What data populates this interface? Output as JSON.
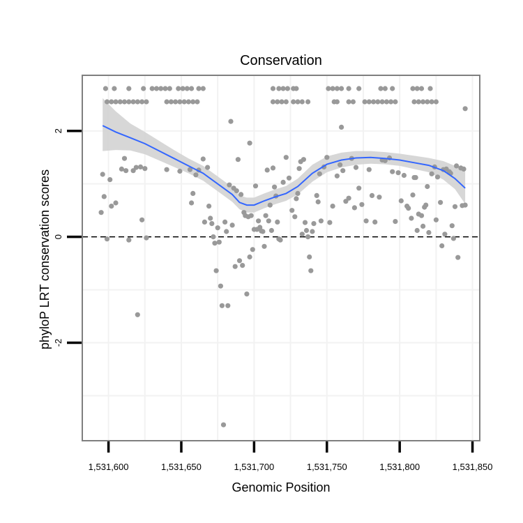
{
  "chart_data": {
    "type": "scatter",
    "title": "Conservation",
    "xlabel": "Genomic Position",
    "ylabel": "phyloP LRT conservation scores",
    "xlim": [
      1531582,
      1531855
    ],
    "ylim": [
      -3.85,
      3.05
    ],
    "grid": true,
    "x_ticks": [
      1531600,
      1531650,
      1531700,
      1531750,
      1531800,
      1531850
    ],
    "x_tick_labels": [
      "1,531,600",
      "1,531,650",
      "1,531,700",
      "1,531,750",
      "1,531,800",
      "1,531,850"
    ],
    "y_ticks": [
      -2,
      0,
      2
    ],
    "y_tick_labels": [
      "-2",
      "0",
      "2"
    ],
    "reference_line": {
      "y": 0,
      "style": "dashed"
    },
    "colors": {
      "points": "#999999",
      "smooth": "#3366FF",
      "ribbon": "#D3D3D3",
      "panel_border": "#7F7F7F",
      "grid": "#F2F2F2"
    },
    "series": [
      {
        "name": "points",
        "points": [
          [
            1531598,
            2.8
          ],
          [
            1531604,
            2.8
          ],
          [
            1531614,
            2.8
          ],
          [
            1531624,
            2.8
          ],
          [
            1531630,
            2.8
          ],
          [
            1531633,
            2.8
          ],
          [
            1531636,
            2.8
          ],
          [
            1531639,
            2.8
          ],
          [
            1531642,
            2.8
          ],
          [
            1531648,
            2.8
          ],
          [
            1531651,
            2.8
          ],
          [
            1531654,
            2.8
          ],
          [
            1531657,
            2.8
          ],
          [
            1531662,
            2.8
          ],
          [
            1531665,
            2.8
          ],
          [
            1531599,
            2.55
          ],
          [
            1531602,
            2.55
          ],
          [
            1531605,
            2.55
          ],
          [
            1531608,
            2.55
          ],
          [
            1531611,
            2.55
          ],
          [
            1531614,
            2.55
          ],
          [
            1531617,
            2.55
          ],
          [
            1531620,
            2.55
          ],
          [
            1531623,
            2.55
          ],
          [
            1531626,
            2.55
          ],
          [
            1531640,
            2.55
          ],
          [
            1531643,
            2.55
          ],
          [
            1531646,
            2.55
          ],
          [
            1531649,
            2.55
          ],
          [
            1531652,
            2.55
          ],
          [
            1531655,
            2.55
          ],
          [
            1531658,
            2.55
          ],
          [
            1531661,
            2.55
          ],
          [
            1531713,
            2.8
          ],
          [
            1531717,
            2.8
          ],
          [
            1531720,
            2.8
          ],
          [
            1531723,
            2.8
          ],
          [
            1531727,
            2.8
          ],
          [
            1531729,
            2.8
          ],
          [
            1531751,
            2.8
          ],
          [
            1531754,
            2.8
          ],
          [
            1531757,
            2.8
          ],
          [
            1531760,
            2.8
          ],
          [
            1531765,
            2.8
          ],
          [
            1531772,
            2.8
          ],
          [
            1531787,
            2.8
          ],
          [
            1531790,
            2.8
          ],
          [
            1531795,
            2.8
          ],
          [
            1531809,
            2.8
          ],
          [
            1531812,
            2.8
          ],
          [
            1531815,
            2.8
          ],
          [
            1531821,
            2.8
          ],
          [
            1531713,
            2.55
          ],
          [
            1531716,
            2.55
          ],
          [
            1531719,
            2.55
          ],
          [
            1531722,
            2.55
          ],
          [
            1531727,
            2.55
          ],
          [
            1531730,
            2.55
          ],
          [
            1531733,
            2.55
          ],
          [
            1531737,
            2.55
          ],
          [
            1531755,
            2.55
          ],
          [
            1531757,
            2.55
          ],
          [
            1531765,
            2.55
          ],
          [
            1531768,
            2.55
          ],
          [
            1531776,
            2.55
          ],
          [
            1531779,
            2.55
          ],
          [
            1531782,
            2.55
          ],
          [
            1531785,
            2.55
          ],
          [
            1531788,
            2.55
          ],
          [
            1531791,
            2.55
          ],
          [
            1531794,
            2.55
          ],
          [
            1531797,
            2.55
          ],
          [
            1531810,
            2.55
          ],
          [
            1531813,
            2.55
          ],
          [
            1531816,
            2.55
          ],
          [
            1531819,
            2.55
          ],
          [
            1531822,
            2.55
          ],
          [
            1531825,
            2.55
          ],
          [
            1531845,
            2.42
          ],
          [
            1531760,
            2.07
          ],
          [
            1531684,
            2.18
          ],
          [
            1531697,
            1.77
          ],
          [
            1531595,
            0.46
          ],
          [
            1531596,
            1.18
          ],
          [
            1531597,
            0.76
          ],
          [
            1531599,
            -0.04
          ],
          [
            1531601,
            1.08
          ],
          [
            1531602,
            0.58
          ],
          [
            1531605,
            0.64
          ],
          [
            1531609,
            1.28
          ],
          [
            1531611,
            1.48
          ],
          [
            1531612,
            1.25
          ],
          [
            1531614,
            -0.06
          ],
          [
            1531617,
            1.25
          ],
          [
            1531619,
            1.31
          ],
          [
            1531620,
            -1.47
          ],
          [
            1531622,
            1.32
          ],
          [
            1531623,
            0.32
          ],
          [
            1531625,
            1.29
          ],
          [
            1531626,
            -0.02
          ],
          [
            1531640,
            1.27
          ],
          [
            1531649,
            1.24
          ],
          [
            1531656,
            1.27
          ],
          [
            1531657,
            0.64
          ],
          [
            1531658,
            0.82
          ],
          [
            1531660,
            1.17
          ],
          [
            1531662,
            1.26
          ],
          [
            1531665,
            1.47
          ],
          [
            1531666,
            0.28
          ],
          [
            1531668,
            1.31
          ],
          [
            1531669,
            0.58
          ],
          [
            1531670,
            0.35
          ],
          [
            1531671,
            0.25
          ],
          [
            1531672,
            0.0
          ],
          [
            1531673,
            -0.12
          ],
          [
            1531674,
            -0.64
          ],
          [
            1531675,
            0.17
          ],
          [
            1531676,
            -0.1
          ],
          [
            1531677,
            -0.93
          ],
          [
            1531678,
            -1.3
          ],
          [
            1531679,
            -3.55
          ],
          [
            1531680,
            0.28
          ],
          [
            1531681,
            0.1
          ],
          [
            1531682,
            -1.3
          ],
          [
            1531683,
            0.98
          ],
          [
            1531685,
            0.22
          ],
          [
            1531686,
            0.92
          ],
          [
            1531687,
            -0.56
          ],
          [
            1531688,
            0.87
          ],
          [
            1531689,
            1.46
          ],
          [
            1531690,
            -0.45
          ],
          [
            1531691,
            0.8
          ],
          [
            1531692,
            -0.54
          ],
          [
            1531693,
            0.46
          ],
          [
            1531694,
            0.4
          ],
          [
            1531695,
            -1.08
          ],
          [
            1531696,
            0.38
          ],
          [
            1531697,
            -0.38
          ],
          [
            1531698,
            0.4
          ],
          [
            1531699,
            -0.24
          ],
          [
            1531700,
            0.14
          ],
          [
            1531701,
            0.96
          ],
          [
            1531702,
            0.14
          ],
          [
            1531703,
            0.3
          ],
          [
            1531704,
            0.18
          ],
          [
            1531705,
            0.11
          ],
          [
            1531706,
            0.1
          ],
          [
            1531707,
            -0.18
          ],
          [
            1531708,
            0.4
          ],
          [
            1531709,
            1.26
          ],
          [
            1531710,
            0.3
          ],
          [
            1531711,
            0.6
          ],
          [
            1531712,
            0.12
          ],
          [
            1531713,
            1.3
          ],
          [
            1531714,
            0.94
          ],
          [
            1531715,
            0.77
          ],
          [
            1531716,
            0.28
          ],
          [
            1531717,
            -0.04
          ],
          [
            1531718,
            -0.06
          ],
          [
            1531720,
            1.03
          ],
          [
            1531722,
            1.5
          ],
          [
            1531724,
            1.11
          ],
          [
            1531726,
            0.5
          ],
          [
            1531728,
            0.38
          ],
          [
            1531729,
            0.72
          ],
          [
            1531730,
            0.82
          ],
          [
            1531731,
            1.29
          ],
          [
            1531732,
            1.42
          ],
          [
            1531733,
            0.05
          ],
          [
            1531734,
            1.46
          ],
          [
            1531735,
            0.27
          ],
          [
            1531736,
            0.12
          ],
          [
            1531737,
            0.0
          ],
          [
            1531738,
            -0.38
          ],
          [
            1531739,
            -0.64
          ],
          [
            1531740,
            0.1
          ],
          [
            1531741,
            0.25
          ],
          [
            1531743,
            0.78
          ],
          [
            1531744,
            0.66
          ],
          [
            1531745,
            1.19
          ],
          [
            1531746,
            0.3
          ],
          [
            1531748,
            1.32
          ],
          [
            1531750,
            1.5
          ],
          [
            1531752,
            0.27
          ],
          [
            1531754,
            0.58
          ],
          [
            1531757,
            1.15
          ],
          [
            1531759,
            1.36
          ],
          [
            1531761,
            1.25
          ],
          [
            1531763,
            0.67
          ],
          [
            1531765,
            0.73
          ],
          [
            1531767,
            1.48
          ],
          [
            1531769,
            0.55
          ],
          [
            1531770,
            1.31
          ],
          [
            1531772,
            0.92
          ],
          [
            1531774,
            0.61
          ],
          [
            1531777,
            0.3
          ],
          [
            1531779,
            1.27
          ],
          [
            1531781,
            0.78
          ],
          [
            1531783,
            0.28
          ],
          [
            1531786,
            0.75
          ],
          [
            1531788,
            1.45
          ],
          [
            1531790,
            1.44
          ],
          [
            1531793,
            1.49
          ],
          [
            1531795,
            1.23
          ],
          [
            1531797,
            0.29
          ],
          [
            1531799,
            1.21
          ],
          [
            1531801,
            0.68
          ],
          [
            1531803,
            1.16
          ],
          [
            1531805,
            0.58
          ],
          [
            1531806,
            0.54
          ],
          [
            1531808,
            0.35
          ],
          [
            1531809,
            0.79
          ],
          [
            1531810,
            1.12
          ],
          [
            1531811,
            1.12
          ],
          [
            1531812,
            0.12
          ],
          [
            1531813,
            0.43
          ],
          [
            1531815,
            0.4
          ],
          [
            1531816,
            0.2
          ],
          [
            1531817,
            0.56
          ],
          [
            1531818,
            0.6
          ],
          [
            1531819,
            0.95
          ],
          [
            1531820,
            0.08
          ],
          [
            1531822,
            1.19
          ],
          [
            1531824,
            1.32
          ],
          [
            1531825,
            0.32
          ],
          [
            1531826,
            1.13
          ],
          [
            1531828,
            0.65
          ],
          [
            1531829,
            -0.17
          ],
          [
            1531830,
            1.27
          ],
          [
            1531831,
            0.05
          ],
          [
            1531832,
            1.28
          ],
          [
            1531834,
            1.23
          ],
          [
            1531835,
            1.2
          ],
          [
            1531836,
            0.21
          ],
          [
            1531837,
            -0.03
          ],
          [
            1531838,
            0.57
          ],
          [
            1531839,
            1.34
          ],
          [
            1531840,
            -0.39
          ],
          [
            1531842,
            1.3
          ],
          [
            1531843,
            0.59
          ],
          [
            1531844,
            1.28
          ],
          [
            1531845,
            0.6
          ]
        ]
      },
      {
        "name": "loess",
        "type": "line",
        "x": [
          1531596,
          1531605,
          1531615,
          1531625,
          1531635,
          1531645,
          1531655,
          1531665,
          1531675,
          1531685,
          1531690,
          1531695,
          1531700,
          1531707,
          1531715,
          1531722,
          1531730,
          1531740,
          1531750,
          1531760,
          1531770,
          1531780,
          1531790,
          1531800,
          1531810,
          1531820,
          1531830,
          1531838,
          1531845
        ],
        "y": [
          2.1,
          1.98,
          1.87,
          1.76,
          1.62,
          1.48,
          1.34,
          1.2,
          1.0,
          0.8,
          0.65,
          0.6,
          0.6,
          0.68,
          0.76,
          0.82,
          0.95,
          1.2,
          1.37,
          1.45,
          1.49,
          1.5,
          1.48,
          1.45,
          1.4,
          1.35,
          1.25,
          1.1,
          0.92
        ],
        "lower": [
          1.62,
          1.64,
          1.63,
          1.56,
          1.44,
          1.32,
          1.2,
          1.06,
          0.86,
          0.66,
          0.52,
          0.46,
          0.46,
          0.54,
          0.62,
          0.68,
          0.8,
          1.04,
          1.22,
          1.31,
          1.36,
          1.38,
          1.37,
          1.34,
          1.28,
          1.22,
          1.08,
          0.9,
          0.62
        ],
        "upper": [
          2.62,
          2.37,
          2.14,
          1.98,
          1.81,
          1.64,
          1.48,
          1.34,
          1.14,
          0.94,
          0.78,
          0.74,
          0.74,
          0.82,
          0.9,
          0.96,
          1.1,
          1.36,
          1.52,
          1.59,
          1.62,
          1.62,
          1.6,
          1.57,
          1.53,
          1.49,
          1.43,
          1.34,
          1.24
        ]
      }
    ]
  }
}
